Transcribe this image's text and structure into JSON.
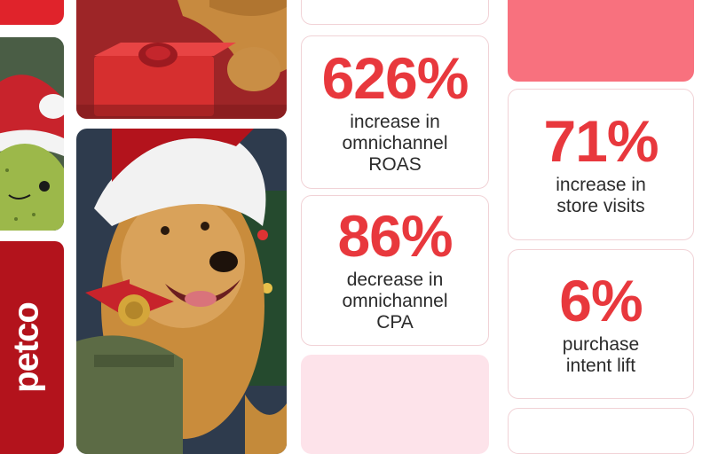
{
  "brand": {
    "name": "petco",
    "color": "#b3131c"
  },
  "theme": {
    "stat_color": "#e8383d",
    "text_color": "#2b2b2b",
    "card_border": "#f1d2d6",
    "pink_solid": "#f8717e",
    "pink_light": "#fde3ea"
  },
  "stats": [
    {
      "value": "626%",
      "description": "increase in\nomnichannel\nROAS"
    },
    {
      "value": "86%",
      "description": "decrease in\nomnichannel\nCPA"
    },
    {
      "value": "71%",
      "description": "increase in\nstore visits"
    },
    {
      "value": "6%",
      "description": "purchase\nintent lift"
    }
  ],
  "images": {
    "dog_with_gift": "photo-icon",
    "dog_santa_hat": "photo-icon",
    "plush_toy": "photo-icon"
  }
}
